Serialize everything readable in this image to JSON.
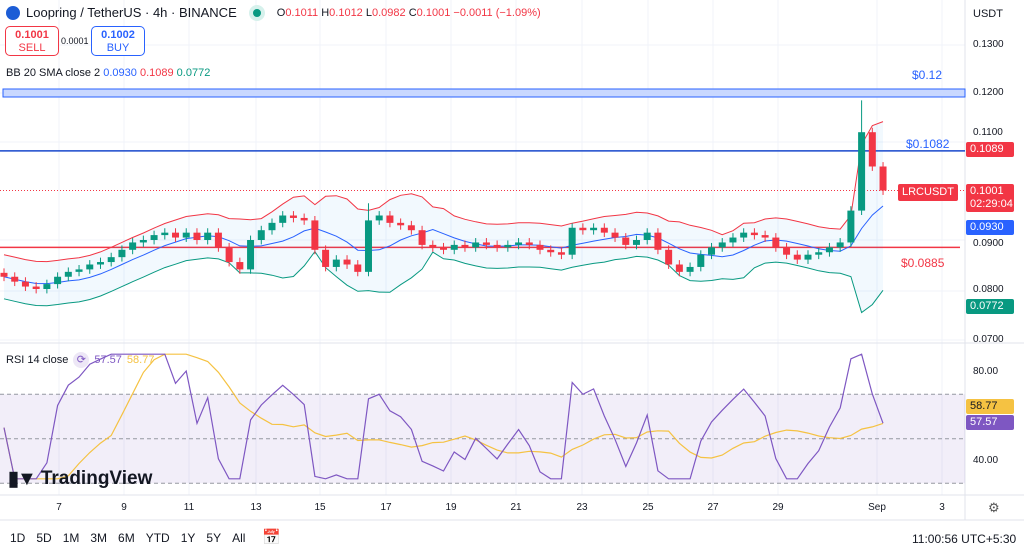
{
  "header": {
    "symbol": "Loopring / TetherUS · 4h · BINANCE",
    "o_label": "O",
    "o": "0.1011",
    "h_label": "H",
    "h": "0.1012",
    "l_label": "L",
    "l": "0.0982",
    "c_label": "C",
    "c": "0.1001",
    "change": "−0.0011 (−1.09%)"
  },
  "trade": {
    "sell_price": "0.1001",
    "sell_label": "SELL",
    "spread": "0.0001",
    "buy_price": "0.1002",
    "buy_label": "BUY"
  },
  "bb": {
    "label": "BB 20 SMA close 2",
    "basis": "0.0930",
    "upper": "0.1089",
    "lower": "0.0772"
  },
  "rsi": {
    "label": "RSI 14 close",
    "value": "57.57",
    "ma": "58.77"
  },
  "currency": "USDT",
  "price_axis": [
    "0.1300",
    "0.1200",
    "0.1100",
    "0.0900",
    "0.0800",
    "0.0700"
  ],
  "rsi_axis": [
    "80.00",
    "40.00"
  ],
  "tags": {
    "upper": "0.1089",
    "symbol": "LRCUSDT",
    "last": "0.1001",
    "countdown": "02:29:04",
    "basis": "0.0930",
    "lower": "0.0772",
    "rsi_ma": "58.77",
    "rsi": "57.57"
  },
  "lines": {
    "band": "$0.12",
    "blue": "$0.1082",
    "red": "$0.0885"
  },
  "time_axis": [
    "7",
    "9",
    "11",
    "13",
    "15",
    "17",
    "19",
    "21",
    "23",
    "25",
    "27",
    "29",
    "Sep",
    "3"
  ],
  "ranges": [
    "1D",
    "5D",
    "1M",
    "3M",
    "6M",
    "YTD",
    "1Y",
    "5Y",
    "All"
  ],
  "clock": "11:00:56 UTC+5:30",
  "watermark": "TradingView",
  "colors": {
    "up": "#089981",
    "down": "#f23645",
    "blue": "#2962ff",
    "rsi": "#7e57c2",
    "rsi_ma": "#f5c242"
  },
  "chart_data": {
    "type": "candlestick",
    "levels": [
      0.12,
      0.1082,
      0.0885
    ],
    "closes": [
      0.0825,
      0.0815,
      0.0805,
      0.08,
      0.081,
      0.0825,
      0.0835,
      0.084,
      0.085,
      0.0855,
      0.0865,
      0.088,
      0.0895,
      0.09,
      0.091,
      0.0915,
      0.0905,
      0.0915,
      0.09,
      0.0915,
      0.0885,
      0.0855,
      0.084,
      0.09,
      0.092,
      0.0935,
      0.095,
      0.0945,
      0.094,
      0.088,
      0.0845,
      0.086,
      0.085,
      0.0835,
      0.094,
      0.095,
      0.0935,
      0.093,
      0.092,
      0.089,
      0.0885,
      0.088,
      0.089,
      0.0885,
      0.0895,
      0.089,
      0.0885,
      0.089,
      0.0895,
      0.089,
      0.088,
      0.0875,
      0.087,
      0.0925,
      0.092,
      0.0925,
      0.0915,
      0.0905,
      0.089,
      0.09,
      0.0915,
      0.088,
      0.085,
      0.0835,
      0.0845,
      0.087,
      0.0885,
      0.0895,
      0.0905,
      0.0915,
      0.091,
      0.0905,
      0.0885,
      0.087,
      0.086,
      0.087,
      0.0875,
      0.0885,
      0.0895,
      0.096,
      0.112,
      0.105,
      0.1001
    ]
  }
}
